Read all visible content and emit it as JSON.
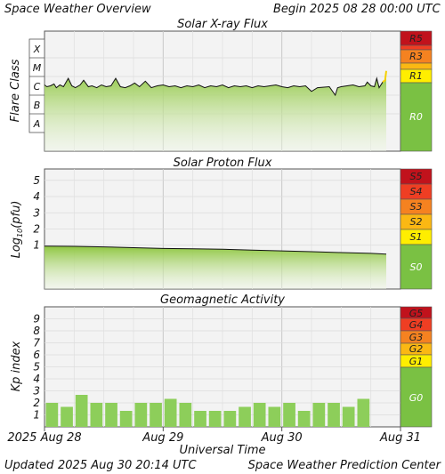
{
  "header": {
    "title": "Space Weather Overview",
    "begin_label": "Begin",
    "begin_value": "2025 08 28 00:00 UTC"
  },
  "footer": {
    "updated_label": "Updated",
    "updated_value": "2025 Aug 30 20:14 UTC",
    "center": "Space Weather Prediction Center"
  },
  "x_axis": {
    "label": "Universal Time",
    "range_days": [
      0,
      3
    ],
    "ticks": [
      {
        "day": 0,
        "label": "2025 Aug 28"
      },
      {
        "day": 1,
        "label": "Aug 29"
      },
      {
        "day": 2,
        "label": "Aug 30"
      },
      {
        "day": 3,
        "label": "Aug 31"
      }
    ]
  },
  "colors": {
    "plot_bg": "#f3f3f3",
    "grid": "#d9d9d9",
    "fill_top": "#8ec63f",
    "fill_bottom": "#eef7e3",
    "line": "#111111",
    "bar": "#8dce5a",
    "scale_green": "#7ac143",
    "level1": "#ffee00",
    "level2": "#fbb813",
    "level3": "#f58220",
    "level4": "#ef3e23",
    "level5": "#c1121c",
    "flare_yellow": "#f5d000"
  },
  "chart_data": [
    {
      "type": "line",
      "title": "Solar X-ray Flux",
      "ylabel": "Flare Class",
      "y_class_labels": [
        "X",
        "M",
        "C",
        "B",
        "A"
      ],
      "scale_levels": [
        "R5",
        "R3",
        "R1",
        "R0"
      ],
      "x_unit": "days since 2025 Aug 28 00:00 UTC",
      "series": [
        {
          "x": [
            0,
            0.02,
            0.05,
            0.08,
            0.1,
            0.13,
            0.16,
            0.2,
            0.23,
            0.26,
            0.3,
            0.33,
            0.37,
            0.4,
            0.44,
            0.48,
            0.52,
            0.56,
            0.6,
            0.64,
            0.68,
            0.72,
            0.76,
            0.8,
            0.85,
            0.9,
            0.95,
            1.0,
            1.05,
            1.1,
            1.15,
            1.2,
            1.25,
            1.3,
            1.35,
            1.4,
            1.45,
            1.5,
            1.55,
            1.6,
            1.65,
            1.7,
            1.75,
            1.8,
            1.85,
            1.9,
            1.95,
            2.0,
            2.05,
            2.1,
            2.15,
            2.2,
            2.25,
            2.3,
            2.4,
            2.45,
            2.47,
            2.5,
            2.55,
            2.6,
            2.65,
            2.7,
            2.72,
            2.75,
            2.78,
            2.8,
            2.82,
            2.85,
            2.87,
            2.88
          ],
          "values": [
            -5.95,
            -6.05,
            -6.0,
            -5.9,
            -6.1,
            -5.95,
            -6.05,
            -5.6,
            -6.0,
            -6.1,
            -5.95,
            -5.7,
            -6.05,
            -6.0,
            -6.1,
            -5.95,
            -6.05,
            -6.0,
            -5.6,
            -6.05,
            -6.1,
            -6.0,
            -5.85,
            -6.05,
            -5.75,
            -6.1,
            -6.0,
            -5.95,
            -6.05,
            -6.0,
            -6.1,
            -6.0,
            -6.05,
            -5.95,
            -6.1,
            -6.0,
            -6.05,
            -5.95,
            -6.1,
            -6.0,
            -6.05,
            -6.0,
            -6.1,
            -6.0,
            -6.05,
            -6.0,
            -5.95,
            -6.05,
            -6.1,
            -6.0,
            -6.05,
            -6.0,
            -6.3,
            -6.1,
            -6.05,
            -6.5,
            -6.1,
            -6.05,
            -6.0,
            -5.95,
            -6.05,
            -6.0,
            -5.8,
            -6.0,
            -6.05,
            -5.6,
            -6.1,
            -5.8,
            -5.7,
            -5.2
          ],
          "value_unit": "log10 W/m2"
        }
      ]
    },
    {
      "type": "line",
      "title": "Solar Proton Flux",
      "ylabel": "Log10(pfu)",
      "ylim": [
        -1.7,
        5.7
      ],
      "y_ticks": [
        1,
        2,
        3,
        4,
        5
      ],
      "scale_levels": [
        "S5",
        "S4",
        "S3",
        "S2",
        "S1",
        "S0"
      ],
      "series": [
        {
          "x": [
            0,
            0.25,
            0.5,
            0.75,
            1.0,
            1.25,
            1.5,
            1.75,
            2.0,
            2.25,
            2.5,
            2.75,
            2.88
          ],
          "values": [
            0.95,
            0.93,
            0.9,
            0.85,
            0.8,
            0.78,
            0.75,
            0.7,
            0.65,
            0.6,
            0.55,
            0.5,
            0.45
          ]
        }
      ]
    },
    {
      "type": "bar",
      "title": "Geomagnetic Activity",
      "ylabel": "Kp index",
      "ylim": [
        0,
        10
      ],
      "y_ticks": [
        1,
        2,
        3,
        4,
        5,
        6,
        7,
        8,
        9
      ],
      "scale_levels": [
        "G5",
        "G4",
        "G3",
        "G2",
        "G1",
        "G0"
      ],
      "bin_hours": 3,
      "values": [
        2.0,
        1.67,
        2.67,
        2.0,
        2.0,
        1.33,
        2.0,
        2.0,
        2.33,
        2.0,
        1.33,
        1.33,
        1.33,
        1.67,
        2.0,
        1.67,
        2.0,
        1.33,
        2.0,
        2.0,
        1.67,
        2.33
      ]
    }
  ]
}
